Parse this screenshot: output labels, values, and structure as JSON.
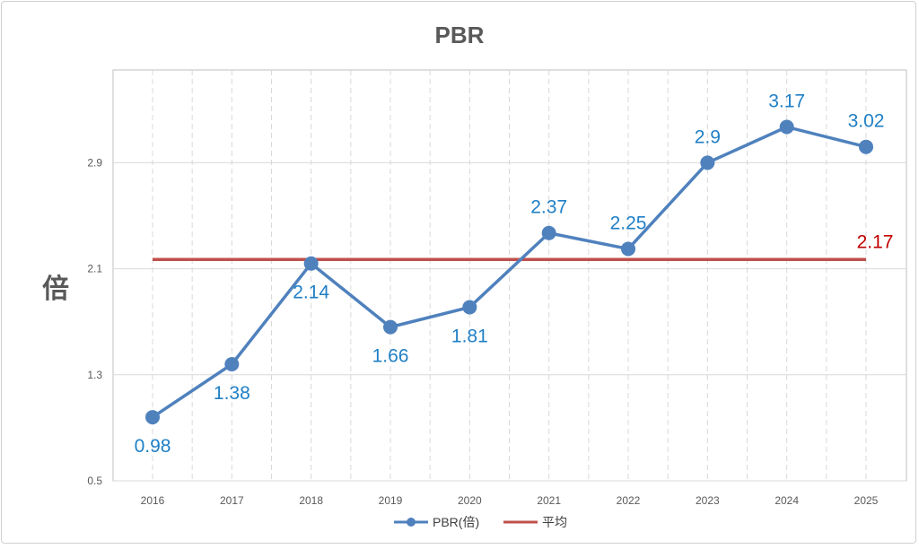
{
  "chart_data": {
    "type": "line",
    "title": "PBR",
    "ylabel": "倍",
    "xlabel": "",
    "categories": [
      "2016",
      "2017",
      "2018",
      "2019",
      "2020",
      "2021",
      "2022",
      "2023",
      "2024",
      "2025"
    ],
    "series": [
      {
        "name": "PBR(倍)",
        "values": [
          0.98,
          1.38,
          2.14,
          1.66,
          1.81,
          2.37,
          2.25,
          2.9,
          3.17,
          3.02
        ],
        "data_labels": [
          "0.98",
          "1.38",
          "2.14",
          "1.66",
          "1.81",
          "2.37",
          "2.25",
          "2.9",
          "3.17",
          "3.02"
        ],
        "color": "#4f81bd",
        "label_color": "#1f7fc6"
      },
      {
        "name": "平均",
        "values": [
          2.17,
          2.17,
          2.17,
          2.17,
          2.17,
          2.17,
          2.17,
          2.17,
          2.17,
          2.17
        ],
        "end_label": "2.17",
        "color": "#c0504d"
      }
    ],
    "yticks": [
      "0.5",
      "1.3",
      "2.1",
      "2.9"
    ],
    "ylim": [
      0.5,
      3.6
    ],
    "grid": "vertical dashed and horizontal solid",
    "legend_position": "bottom"
  }
}
